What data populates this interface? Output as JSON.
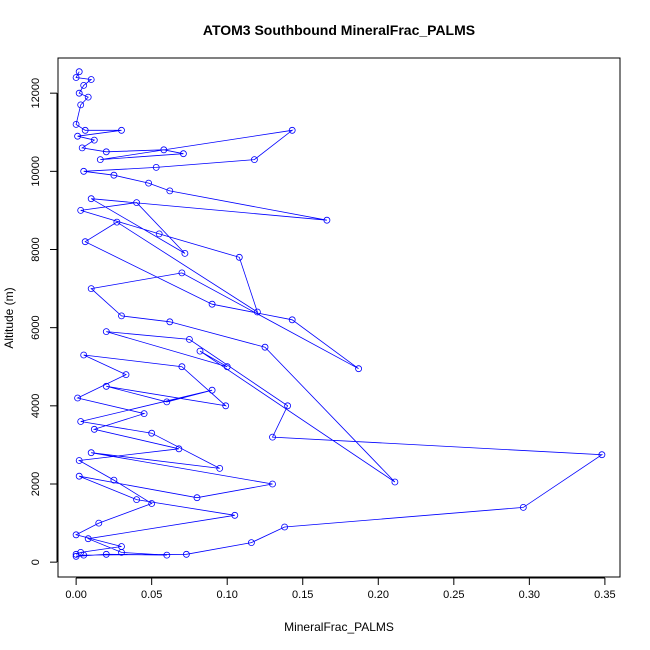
{
  "chart_data": {
    "type": "line",
    "title": "ATOM3 Southbound MineralFrac_PALMS",
    "xlabel": "MineralFrac_PALMS",
    "ylabel": "Altitude (m)",
    "xlim": [
      -0.012,
      0.36
    ],
    "ylim": [
      -380,
      12900
    ],
    "xticks": [
      0.0,
      0.05,
      0.1,
      0.15,
      0.2,
      0.25,
      0.3,
      0.35
    ],
    "xtick_labels": [
      "0.00",
      "0.05",
      "0.10",
      "0.15",
      "0.20",
      "0.25",
      "0.30",
      "0.35"
    ],
    "yticks": [
      0,
      2000,
      4000,
      6000,
      8000,
      10000,
      12000
    ],
    "ytick_labels": [
      "0",
      "2000",
      "4000",
      "6000",
      "8000",
      "10000",
      "12000"
    ],
    "marker": "open-circle",
    "grid": false,
    "legend": "none",
    "series": [
      {
        "color": "#0000ff",
        "points": [
          [
            0.002,
            12550
          ],
          [
            0.0,
            12400
          ],
          [
            0.01,
            12350
          ],
          [
            0.005,
            12200
          ],
          [
            0.002,
            12000
          ],
          [
            0.008,
            11900
          ],
          [
            0.003,
            11700
          ],
          [
            0.0,
            11200
          ],
          [
            0.006,
            11050
          ],
          [
            0.03,
            11050
          ],
          [
            0.001,
            10900
          ],
          [
            0.012,
            10800
          ],
          [
            0.004,
            10600
          ],
          [
            0.02,
            10500
          ],
          [
            0.058,
            10550
          ],
          [
            0.071,
            10450
          ],
          [
            0.016,
            10300
          ],
          [
            0.143,
            11050
          ],
          [
            0.118,
            10300
          ],
          [
            0.053,
            10100
          ],
          [
            0.005,
            10000
          ],
          [
            0.025,
            9900
          ],
          [
            0.048,
            9700
          ],
          [
            0.062,
            9500
          ],
          [
            0.166,
            8750
          ],
          [
            0.01,
            9300
          ],
          [
            0.072,
            7900
          ],
          [
            0.04,
            9200
          ],
          [
            0.003,
            9000
          ],
          [
            0.055,
            8400
          ],
          [
            0.108,
            7800
          ],
          [
            0.12,
            6400
          ],
          [
            0.027,
            8700
          ],
          [
            0.006,
            8200
          ],
          [
            0.09,
            6600
          ],
          [
            0.143,
            6200
          ],
          [
            0.187,
            4950
          ],
          [
            0.07,
            7400
          ],
          [
            0.01,
            7000
          ],
          [
            0.03,
            6300
          ],
          [
            0.062,
            6150
          ],
          [
            0.125,
            5500
          ],
          [
            0.211,
            2050
          ],
          [
            0.082,
            5400
          ],
          [
            0.1,
            5000
          ],
          [
            0.02,
            5900
          ],
          [
            0.075,
            5700
          ],
          [
            0.14,
            4000
          ],
          [
            0.13,
            3200
          ],
          [
            0.348,
            2750
          ],
          [
            0.296,
            1400
          ],
          [
            0.138,
            900
          ],
          [
            0.116,
            500
          ],
          [
            0.073,
            200
          ],
          [
            0.005,
            180
          ],
          [
            0.0,
            150
          ],
          [
            0.02,
            200
          ],
          [
            0.06,
            180
          ],
          [
            0.03,
            250
          ],
          [
            0.008,
            600
          ],
          [
            0.105,
            1200
          ],
          [
            0.04,
            1600
          ],
          [
            0.002,
            2200
          ],
          [
            0.08,
            1650
          ],
          [
            0.13,
            2000
          ],
          [
            0.01,
            2800
          ],
          [
            0.095,
            2400
          ],
          [
            0.05,
            3300
          ],
          [
            0.003,
            3600
          ],
          [
            0.09,
            4400
          ],
          [
            0.06,
            4100
          ],
          [
            0.02,
            4500
          ],
          [
            0.099,
            4000
          ],
          [
            0.07,
            5000
          ],
          [
            0.005,
            5300
          ],
          [
            0.033,
            4800
          ],
          [
            0.001,
            4200
          ],
          [
            0.045,
            3800
          ],
          [
            0.012,
            3400
          ],
          [
            0.068,
            2900
          ],
          [
            0.002,
            2600
          ],
          [
            0.025,
            2100
          ],
          [
            0.05,
            1500
          ],
          [
            0.015,
            1000
          ],
          [
            0.0,
            700
          ],
          [
            0.03,
            400
          ],
          [
            0.003,
            250
          ],
          [
            0.0,
            200
          ]
        ]
      }
    ]
  }
}
